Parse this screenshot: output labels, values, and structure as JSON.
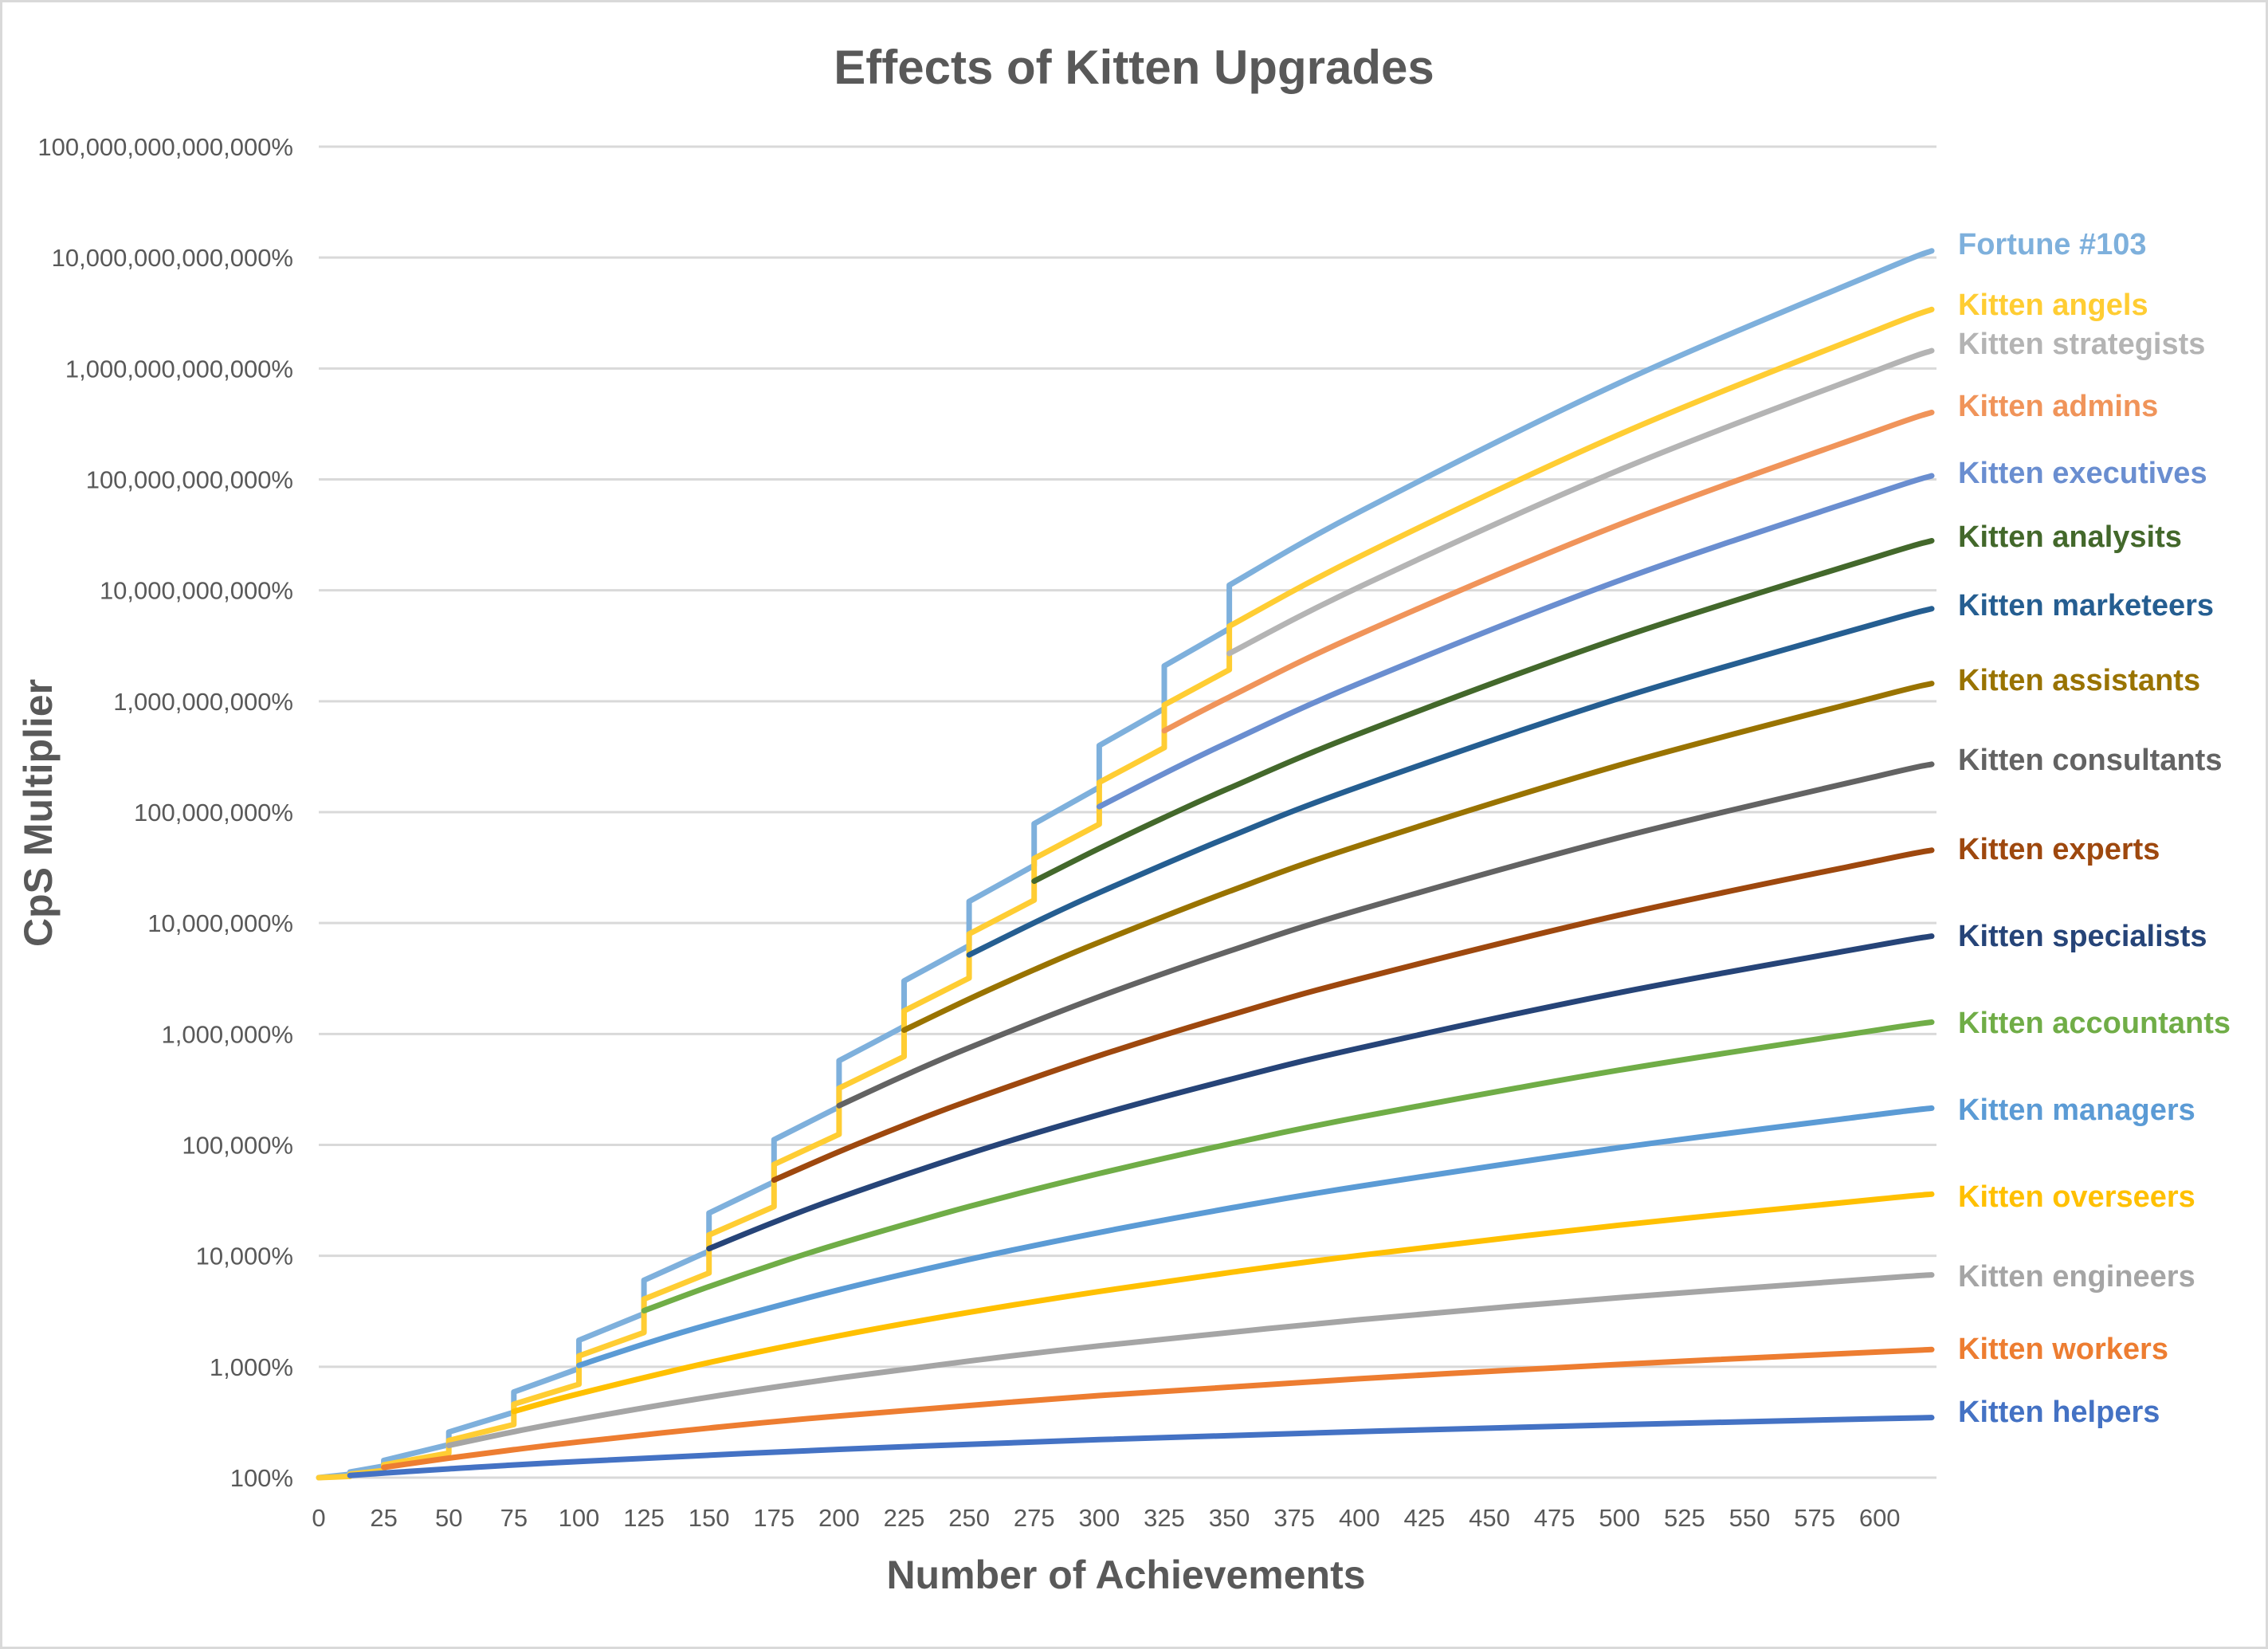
{
  "chart_data": {
    "type": "line",
    "title": "Effects of Kitten Upgrades",
    "xlabel": "Number of Achievements",
    "ylabel": "CpS Multiplier",
    "xlim": [
      0,
      620
    ],
    "ylim": [
      100,
      100000000000000
    ],
    "y_scale": "log",
    "grid": "horizontal",
    "legend": "right (series labels at line ends)",
    "x_ticks": [
      0,
      25,
      50,
      75,
      100,
      125,
      150,
      175,
      200,
      225,
      250,
      275,
      300,
      325,
      350,
      375,
      400,
      425,
      450,
      475,
      500,
      525,
      550,
      575,
      600
    ],
    "y_ticks": [
      {
        "value": 100,
        "label": "100%"
      },
      {
        "value": 1000,
        "label": "1,000%"
      },
      {
        "value": 10000,
        "label": "10,000%"
      },
      {
        "value": 100000,
        "label": "100,000%"
      },
      {
        "value": 1000000,
        "label": "1,000,000%"
      },
      {
        "value": 10000000,
        "label": "10,000,000%"
      },
      {
        "value": 100000000,
        "label": "100,000,000%"
      },
      {
        "value": 1000000000,
        "label": "1,000,000,000%"
      },
      {
        "value": 10000000000,
        "label": "10,000,000,000%"
      },
      {
        "value": 100000000000,
        "label": "100,000,000,000%"
      },
      {
        "value": 1000000000000,
        "label": "1,000,000,000,000%"
      },
      {
        "value": 10000000000000,
        "label": "10,000,000,000,000%"
      },
      {
        "value": 100000000000000,
        "label": "100,000,000,000,000%"
      }
    ],
    "series": [
      {
        "name": "Fortune #103",
        "color": "#7EB0DC",
        "points": [
          [
            0,
            100
          ],
          [
            12,
            107.3
          ],
          [
            12,
            112.5
          ],
          [
            25,
            127.1
          ],
          [
            25,
            143
          ],
          [
            50,
            198.3
          ],
          [
            50,
            257.8
          ],
          [
            75,
            388.5
          ],
          [
            75,
            592.4
          ],
          [
            100,
            962.9
          ],
          [
            100,
            1733
          ],
          [
            125,
            3013
          ],
          [
            125,
            6027
          ],
          [
            150,
            11040
          ],
          [
            150,
            24290
          ],
          [
            175,
            46430
          ],
          [
            175,
            111400
          ],
          [
            200,
            220500
          ],
          [
            200,
            573400
          ],
          [
            225,
            1168400
          ],
          [
            225,
            3008300
          ],
          [
            250,
            6260800
          ],
          [
            250,
            15652000
          ],
          [
            275,
            33067000
          ],
          [
            275,
            78535000
          ],
          [
            300,
            167550000
          ],
          [
            300,
            398770000
          ],
          [
            325,
            857200000
          ],
          [
            325,
            2083000000
          ],
          [
            350,
            4506000000
          ],
          [
            350,
            11130000000
          ],
          [
            400,
            50915000000
          ],
          [
            500,
            743370000000
          ],
          [
            600,
            7505400000000
          ],
          [
            620,
            11501000000000
          ]
        ]
      },
      {
        "name": "Kitten angels",
        "color": "#FFCD33",
        "points": [
          [
            0,
            100
          ],
          [
            12,
            102.6
          ],
          [
            12,
            107.5
          ],
          [
            25,
            116
          ],
          [
            25,
            130.5
          ],
          [
            50,
            166.4
          ],
          [
            50,
            216.3
          ],
          [
            75,
            301.6
          ],
          [
            75,
            459.9
          ],
          [
            100,
            695.7
          ],
          [
            100,
            1252
          ],
          [
            125,
            2036
          ],
          [
            125,
            4072
          ],
          [
            150,
            7004
          ],
          [
            150,
            15410
          ],
          [
            175,
            27770
          ],
          [
            175,
            66640
          ],
          [
            200,
            124700
          ],
          [
            200,
            324300
          ],
          [
            225,
            626800
          ],
          [
            225,
            1613900
          ],
          [
            250,
            3194300
          ],
          [
            250,
            7985500
          ],
          [
            275,
            16083000
          ],
          [
            275,
            38198000
          ],
          [
            300,
            77856000
          ],
          [
            300,
            185300000
          ],
          [
            325,
            381300000
          ],
          [
            325,
            926600000
          ],
          [
            350,
            1922400000
          ],
          [
            350,
            4748500000
          ],
          [
            400,
            20077000000
          ],
          [
            500,
            254580000000
          ],
          [
            600,
            2271600000000
          ],
          [
            620,
            3401600000000
          ]
        ]
      },
      {
        "name": "Kitten strategists",
        "color": "#B4B4B4",
        "points": [
          [
            350,
            2693400000
          ],
          [
            400,
            10725000000
          ],
          [
            500,
            121810000000
          ],
          [
            600,
            984220000000
          ],
          [
            620,
            1446500000000
          ]
        ]
      },
      {
        "name": "Kitten admins",
        "color": "#F0945A",
        "points": [
          [
            325,
            542350000
          ],
          [
            350,
            1090400000
          ],
          [
            400,
            4001900000
          ],
          [
            500,
            39292000000
          ],
          [
            600,
            279610000000
          ],
          [
            620,
            401360000000
          ]
        ]
      },
      {
        "name": "Kitten executives",
        "color": "#6A8ED0",
        "points": [
          [
            300,
            112030000
          ],
          [
            325,
            223190000
          ],
          [
            350,
            429300000
          ],
          [
            400,
            1450000000
          ],
          [
            500,
            12279000000
          ],
          [
            600,
            76815000000
          ],
          [
            620,
            107660000000
          ]
        ]
      },
      {
        "name": "Kitten analysits",
        "color": "#43682B",
        "points": [
          [
            275,
            23881000
          ],
          [
            300,
            47071500
          ],
          [
            325,
            89455000
          ],
          [
            350,
            164480000
          ],
          [
            400,
            510550000
          ],
          [
            500,
            3720900000
          ],
          [
            600,
            20430000000
          ],
          [
            620,
            27949000000
          ]
        ]
      },
      {
        "name": "Kitten marketeers",
        "color": "#255E91",
        "points": [
          [
            250,
            5168600
          ],
          [
            275,
            10055100
          ],
          [
            300,
            18828600
          ],
          [
            350,
            59812600
          ],
          [
            400,
            170180000
          ],
          [
            500,
            1063100000
          ],
          [
            600,
            5107400000
          ],
          [
            620,
            6816900000
          ]
        ]
      },
      {
        "name": "Kitten assistants",
        "color": "#997300",
        "points": [
          [
            225,
            1082800
          ],
          [
            250,
            2067500
          ],
          [
            275,
            3794400
          ],
          [
            300,
            6724500
          ],
          [
            350,
            19294400
          ],
          [
            400,
            50053600
          ],
          [
            500,
            265780000
          ],
          [
            600,
            1110300000
          ],
          [
            620,
            1444300000
          ]
        ]
      },
      {
        "name": "Kitten consultants",
        "color": "#636363",
        "points": [
          [
            200,
            225800
          ],
          [
            225,
            420500
          ],
          [
            250,
            751800
          ],
          [
            300,
            2169200
          ],
          [
            350,
            5592600
          ],
          [
            400,
            13172000
          ],
          [
            500,
            59062500
          ],
          [
            600,
            213520000
          ],
          [
            620,
            270460000
          ]
        ]
      },
      {
        "name": "Kitten experts",
        "color": "#9E480E",
        "points": [
          [
            175,
            48240
          ],
          [
            200,
            86860
          ],
          [
            225,
            150200
          ],
          [
            250,
            250600
          ],
          [
            300,
            638000
          ],
          [
            350,
            1471700
          ],
          [
            400,
            3136200
          ],
          [
            500,
            11812500
          ],
          [
            600,
            36813600
          ],
          [
            620,
            45380000
          ]
        ]
      },
      {
        "name": "Kitten specialists",
        "color": "#264478",
        "points": [
          [
            150,
            11610
          ],
          [
            175,
            20100
          ],
          [
            200,
            33410
          ],
          [
            250,
            83530
          ],
          [
            300,
            187600
          ],
          [
            350,
            387300
          ],
          [
            400,
            746700
          ],
          [
            500,
            2362500
          ],
          [
            600,
            6347200
          ],
          [
            620,
            7614000
          ]
        ]
      },
      {
        "name": "Kitten accountants",
        "color": "#70AD47",
        "points": [
          [
            125,
            3200
          ],
          [
            150,
            5278
          ],
          [
            175,
            8375
          ],
          [
            200,
            12850
          ],
          [
            250,
            27840
          ],
          [
            300,
            55190
          ],
          [
            350,
            101900
          ],
          [
            400,
            177800
          ],
          [
            500,
            472500
          ],
          [
            600,
            1094300
          ],
          [
            620,
            1277500
          ]
        ]
      },
      {
        "name": "Kitten managers",
        "color": "#5B9BD5",
        "points": [
          [
            100,
            1028
          ],
          [
            125,
            1600
          ],
          [
            150,
            2399
          ],
          [
            200,
            4942
          ],
          [
            250,
            9281
          ],
          [
            300,
            16230
          ],
          [
            350,
            26820
          ],
          [
            400,
            42330
          ],
          [
            500,
            94500
          ],
          [
            600,
            188700
          ],
          [
            620,
            214300
          ]
        ]
      },
      {
        "name": "Kitten overseers",
        "color": "#FFC000",
        "points": [
          [
            75,
            395.3
          ],
          [
            100,
            571.2
          ],
          [
            150,
            1090.6
          ],
          [
            200,
            1901
          ],
          [
            250,
            3094
          ],
          [
            300,
            4774
          ],
          [
            350,
            7059
          ],
          [
            400,
            10080
          ],
          [
            500,
            18900
          ],
          [
            600,
            32530
          ],
          [
            620,
            35960
          ]
        ]
      },
      {
        "name": "Kitten engineers",
        "color": "#A5A5A5",
        "points": [
          [
            50,
            195
          ],
          [
            75,
            259.2
          ],
          [
            100,
            336
          ],
          [
            150,
            532
          ],
          [
            200,
            792
          ],
          [
            250,
            1125
          ],
          [
            300,
            1540
          ],
          [
            400,
            2652
          ],
          [
            500,
            4200
          ],
          [
            600,
            6256
          ],
          [
            620,
            6734
          ]
        ]
      },
      {
        "name": "Kitten workers",
        "color": "#ED7D31",
        "points": [
          [
            25,
            123.75
          ],
          [
            50,
            150
          ],
          [
            75,
            178.75
          ],
          [
            100,
            210
          ],
          [
            150,
            280
          ],
          [
            200,
            360
          ],
          [
            300,
            550
          ],
          [
            400,
            780
          ],
          [
            500,
            1050
          ],
          [
            600,
            1360
          ],
          [
            620,
            1427
          ]
        ]
      },
      {
        "name": "Kitten helpers",
        "color": "#4472C4",
        "points": [
          [
            12,
            104.8
          ],
          [
            25,
            110
          ],
          [
            50,
            120
          ],
          [
            100,
            140
          ],
          [
            200,
            180
          ],
          [
            300,
            220
          ],
          [
            400,
            260
          ],
          [
            500,
            300
          ],
          [
            600,
            340
          ],
          [
            620,
            348
          ]
        ]
      }
    ]
  }
}
